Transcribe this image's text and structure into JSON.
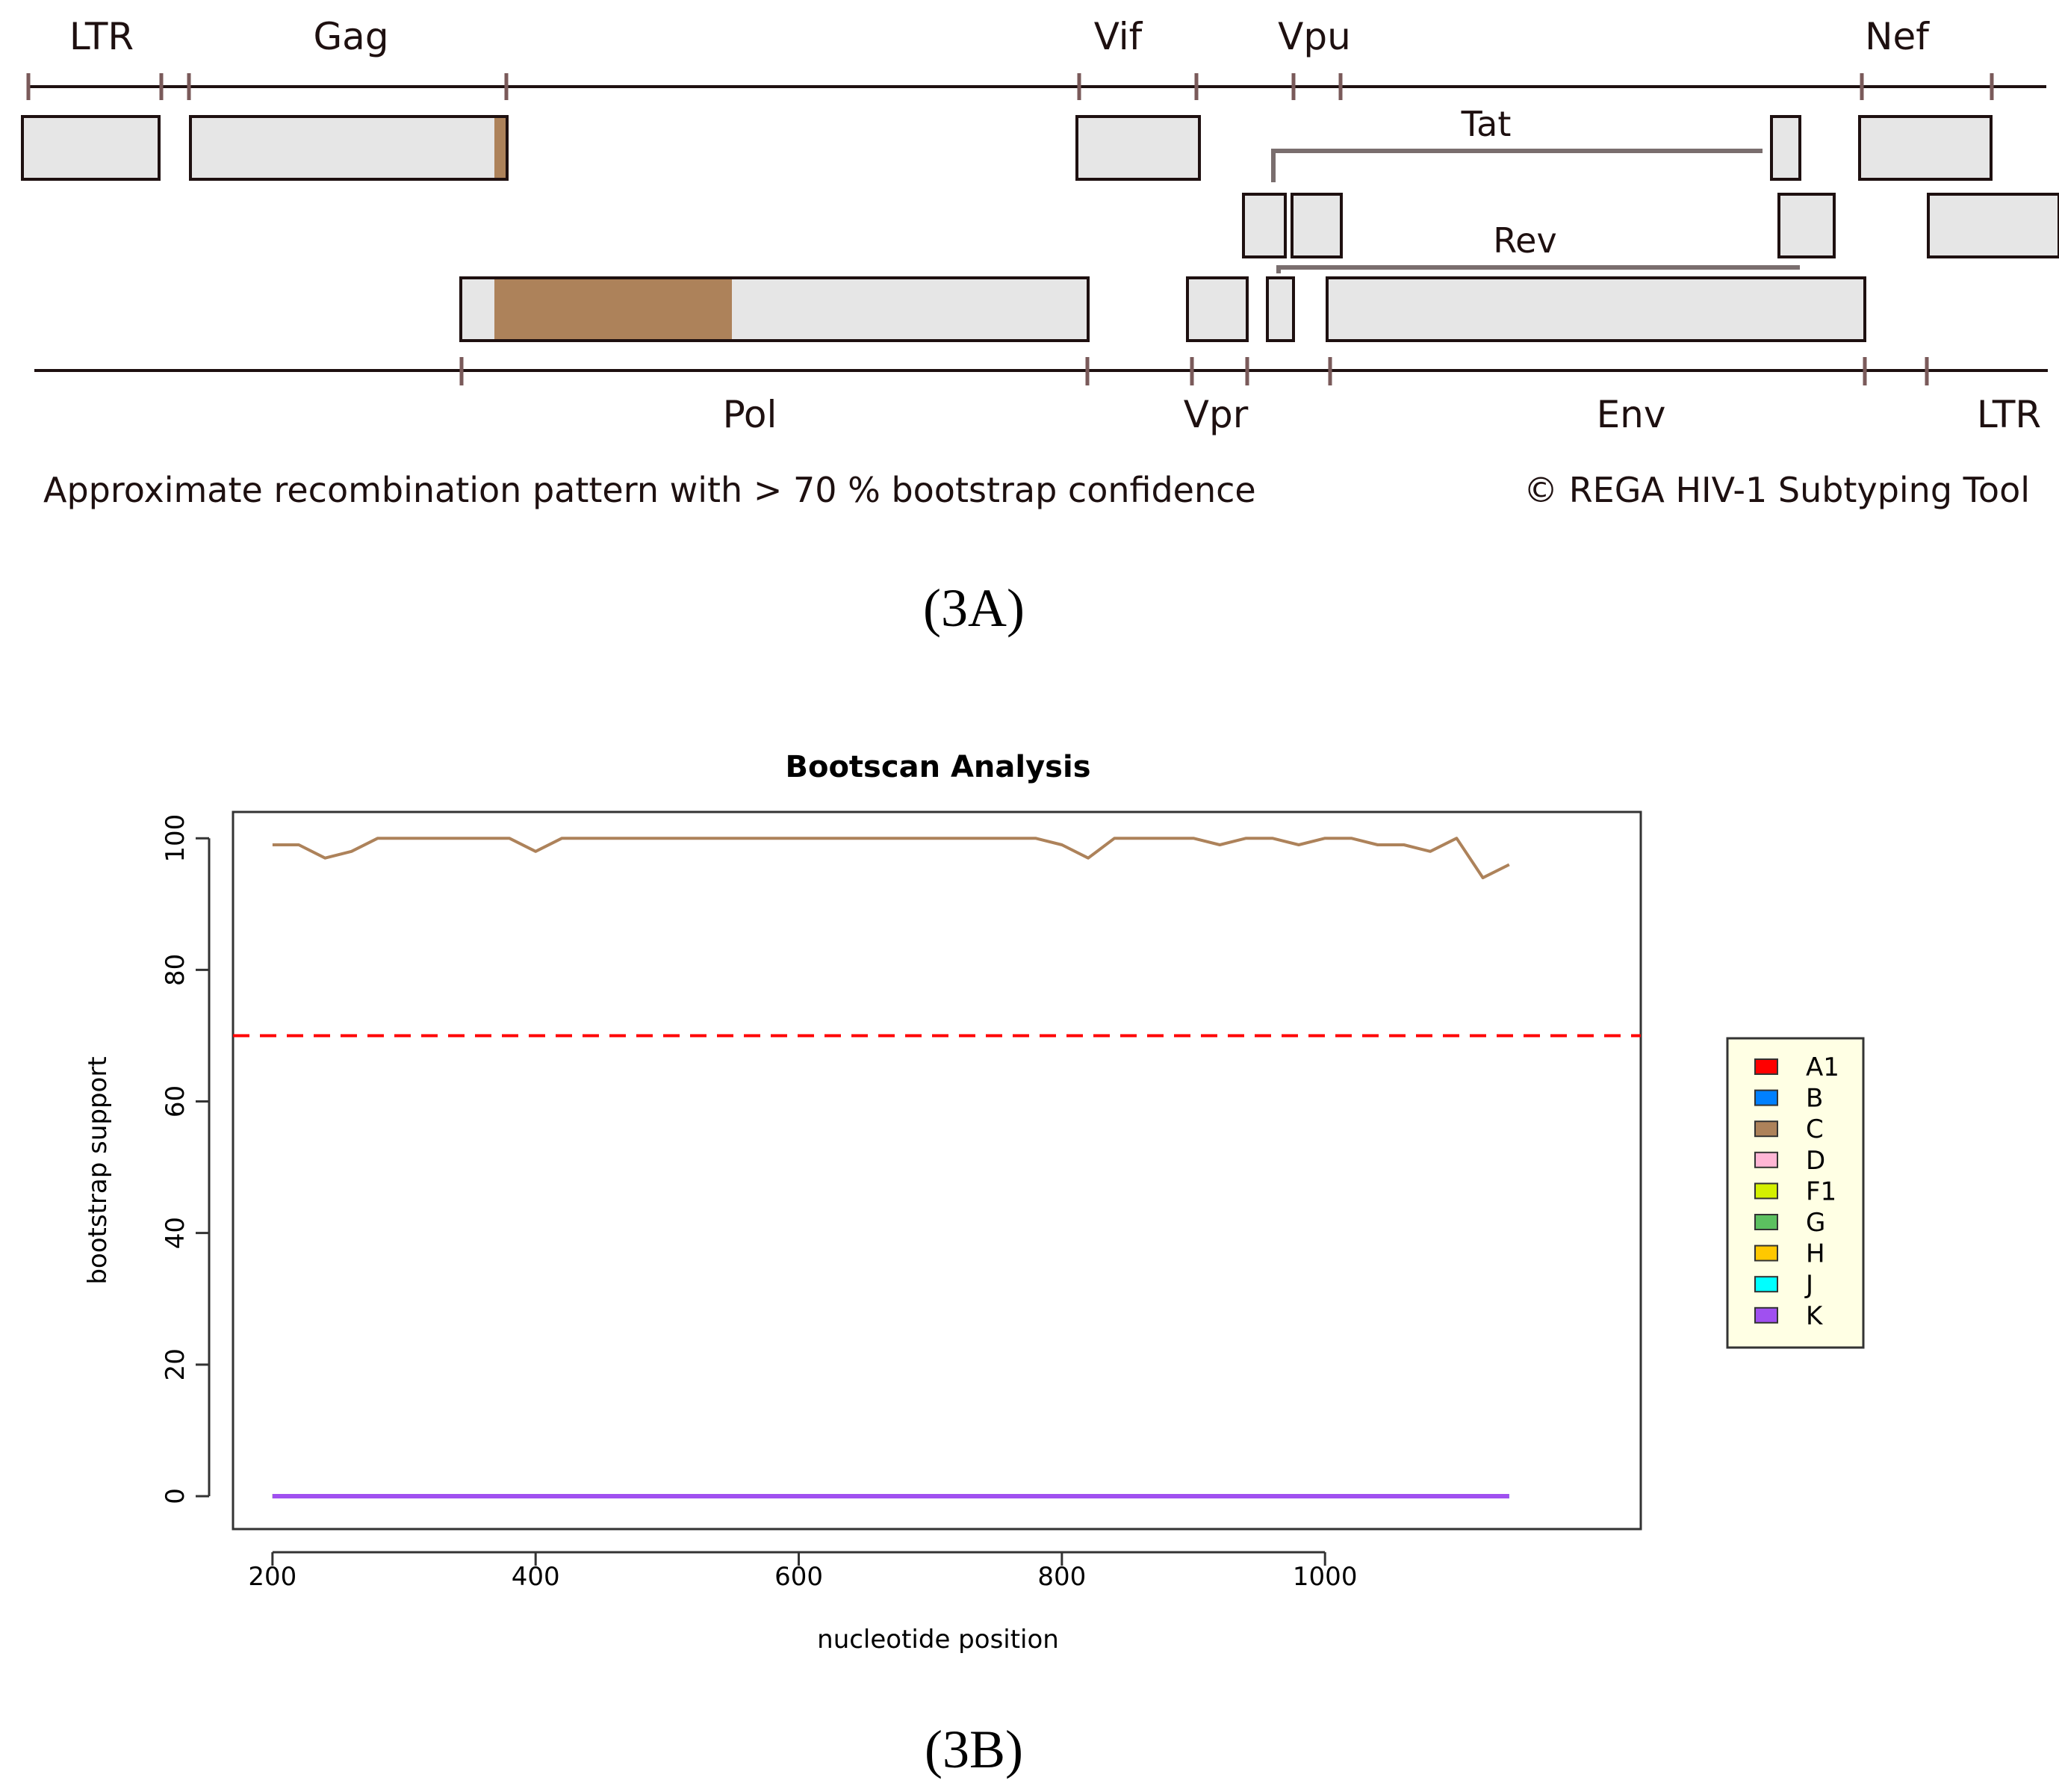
{
  "colors": {
    "frame": "#1e1010",
    "box_fill": "#e6e6e6",
    "tick": "#7a5a5a",
    "spline": "#7a6e6e",
    "subtype_c": "#ad825a",
    "threshold": "#ff0000",
    "legend_bg": "#ffffe4"
  },
  "panel_a": {
    "caption": "(3A)",
    "genes_top": [
      {
        "id": "ltr5",
        "label": "LTR"
      },
      {
        "id": "gag",
        "label": "Gag"
      },
      {
        "id": "vif",
        "label": "Vif"
      },
      {
        "id": "vpu",
        "label": "Vpu"
      },
      {
        "id": "nef",
        "label": "Nef"
      }
    ],
    "genes_bottom": [
      {
        "id": "pol",
        "label": "Pol"
      },
      {
        "id": "vpr",
        "label": "Vpr"
      },
      {
        "id": "env",
        "label": "Env"
      },
      {
        "id": "ltr3",
        "label": "LTR"
      }
    ],
    "splice_labels": [
      {
        "id": "tat",
        "label": "Tat"
      },
      {
        "id": "rev",
        "label": "Rev"
      }
    ],
    "footer_left": "Approximate recombination pattern with > 70 % bootstrap confidence",
    "footer_right": "© REGA HIV-1 Subtyping Tool",
    "recombination_segments": [
      {
        "gene": "Gag",
        "subtype": "C"
      },
      {
        "gene": "Pol",
        "subtype": "C"
      }
    ]
  },
  "panel_b": {
    "caption": "(3B)"
  },
  "chart_data": {
    "type": "line",
    "title": "Bootscan Analysis",
    "xlabel": "nucleotide position",
    "ylabel": "bootstrap support",
    "xlim": [
      170,
      1240
    ],
    "ylim": [
      -5,
      104
    ],
    "xticks": [
      200,
      400,
      600,
      800,
      1000
    ],
    "yticks": [
      0,
      20,
      40,
      60,
      80,
      100
    ],
    "threshold": 70,
    "x": [
      200,
      220,
      240,
      260,
      280,
      300,
      320,
      340,
      360,
      380,
      400,
      420,
      440,
      460,
      480,
      500,
      520,
      540,
      560,
      580,
      600,
      620,
      640,
      660,
      680,
      700,
      720,
      740,
      760,
      780,
      800,
      820,
      840,
      860,
      880,
      900,
      920,
      940,
      960,
      980,
      1000,
      1020,
      1040,
      1060,
      1080,
      1100,
      1120,
      1140
    ],
    "series": [
      {
        "name": "A1",
        "color": "#ff0000",
        "values": "zero"
      },
      {
        "name": "B",
        "color": "#0080ff",
        "values": "zero"
      },
      {
        "name": "C",
        "color": "#ad825a",
        "values": [
          99,
          99,
          97,
          98,
          100,
          100,
          100,
          100,
          100,
          100,
          98,
          100,
          100,
          100,
          100,
          100,
          100,
          100,
          100,
          100,
          100,
          100,
          100,
          100,
          100,
          100,
          100,
          100,
          100,
          100,
          99,
          97,
          100,
          100,
          100,
          100,
          99,
          100,
          100,
          99,
          100,
          100,
          99,
          99,
          98,
          100,
          94,
          96
        ]
      },
      {
        "name": "D",
        "color": "#ffb6d5",
        "values": "zero"
      },
      {
        "name": "F1",
        "color": "#d4f000",
        "values": "zero"
      },
      {
        "name": "G",
        "color": "#5cc060",
        "values": "zero"
      },
      {
        "name": "H",
        "color": "#ffc800",
        "values": "zero"
      },
      {
        "name": "J",
        "color": "#00ffff",
        "values": "zero"
      },
      {
        "name": "K",
        "color": "#a050f0",
        "values": "zero"
      }
    ]
  }
}
